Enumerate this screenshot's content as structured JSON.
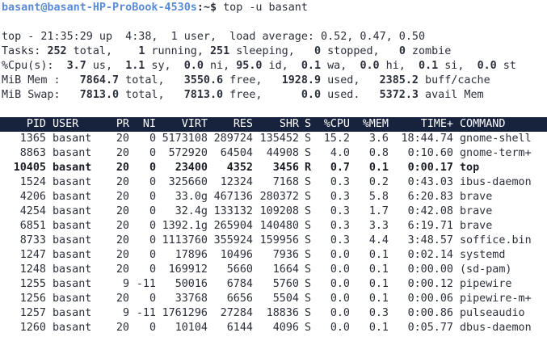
{
  "prompt": {
    "user_host": "basant@basant-HP-ProBook-4530s",
    "path": ":~$",
    "command": " top -u basant"
  },
  "summary": {
    "line1": {
      "prefix": "top - 21:35:29 up  4:38,  1 user,  load average: 0.52, 0.47, 0.50"
    },
    "tasks": {
      "label": "Tasks:",
      "total": "252",
      "running": "1",
      "sleeping": "251",
      "stopped": "0",
      "zombie": "0"
    },
    "cpu": {
      "label": "%Cpu(s):",
      "us": "3.7",
      "sy": "1.1",
      "ni": "0.0",
      "id": "95.0",
      "wa": "0.1",
      "hi": "0.0",
      "si": "0.1",
      "st": "0.0"
    },
    "mem": {
      "label": "MiB Mem :",
      "total": "7864.7",
      "free": "3550.6",
      "used": "1928.9",
      "buff_cache": "2385.2"
    },
    "swap": {
      "label": "MiB Swap:",
      "total": "7813.0",
      "free": "7813.0",
      "used": "0.0",
      "avail": "5372.3"
    }
  },
  "table": {
    "columns": [
      "PID",
      "USER",
      "PR",
      "NI",
      "VIRT",
      "RES",
      "SHR",
      "S",
      "%CPU",
      "%MEM",
      "TIME+",
      "COMMAND"
    ],
    "rows": [
      [
        "1365",
        "basant",
        "20",
        "0",
        "5173108",
        "289724",
        "135452",
        "S",
        "15.2",
        "3.6",
        "18:44.74",
        "gnome-shell"
      ],
      [
        "8863",
        "basant",
        "20",
        "0",
        "572920",
        "64504",
        "44908",
        "S",
        "4.0",
        "0.8",
        "0:10.60",
        "gnome-term+"
      ],
      [
        "10405",
        "basant",
        "20",
        "0",
        "23400",
        "4352",
        "3456",
        "R",
        "0.7",
        "0.1",
        "0:00.17",
        "top"
      ],
      [
        "1524",
        "basant",
        "20",
        "0",
        "325660",
        "12324",
        "7168",
        "S",
        "0.3",
        "0.2",
        "0:43.03",
        "ibus-daemon"
      ],
      [
        "4206",
        "basant",
        "20",
        "0",
        "33.0g",
        "467136",
        "280372",
        "S",
        "0.3",
        "5.8",
        "6:20.83",
        "brave"
      ],
      [
        "4254",
        "basant",
        "20",
        "0",
        "32.4g",
        "133132",
        "109208",
        "S",
        "0.3",
        "1.7",
        "0:42.08",
        "brave"
      ],
      [
        "6851",
        "basant",
        "20",
        "0",
        "1392.1g",
        "265904",
        "140480",
        "S",
        "0.3",
        "3.3",
        "6:19.71",
        "brave"
      ],
      [
        "8733",
        "basant",
        "20",
        "0",
        "1113760",
        "355924",
        "159956",
        "S",
        "0.3",
        "4.4",
        "3:48.57",
        "soffice.bin"
      ],
      [
        "1247",
        "basant",
        "20",
        "0",
        "17896",
        "10496",
        "7936",
        "S",
        "0.0",
        "0.1",
        "0:02.14",
        "systemd"
      ],
      [
        "1248",
        "basant",
        "20",
        "0",
        "169912",
        "5660",
        "1664",
        "S",
        "0.0",
        "0.1",
        "0:00.00",
        "(sd-pam)"
      ],
      [
        "1255",
        "basant",
        "9",
        "-11",
        "50016",
        "6784",
        "5760",
        "S",
        "0.0",
        "0.1",
        "0:00.12",
        "pipewire"
      ],
      [
        "1256",
        "basant",
        "20",
        "0",
        "33768",
        "6656",
        "5504",
        "S",
        "0.0",
        "0.1",
        "0:00.06",
        "pipewire-m+"
      ],
      [
        "1257",
        "basant",
        "9",
        "-11",
        "1761296",
        "27284",
        "18836",
        "S",
        "0.0",
        "0.3",
        "0:00.86",
        "pulseaudio"
      ],
      [
        "1260",
        "basant",
        "20",
        "0",
        "10104",
        "6144",
        "4096",
        "S",
        "0.0",
        "0.1",
        "0:05.77",
        "dbus-daemon"
      ]
    ]
  }
}
